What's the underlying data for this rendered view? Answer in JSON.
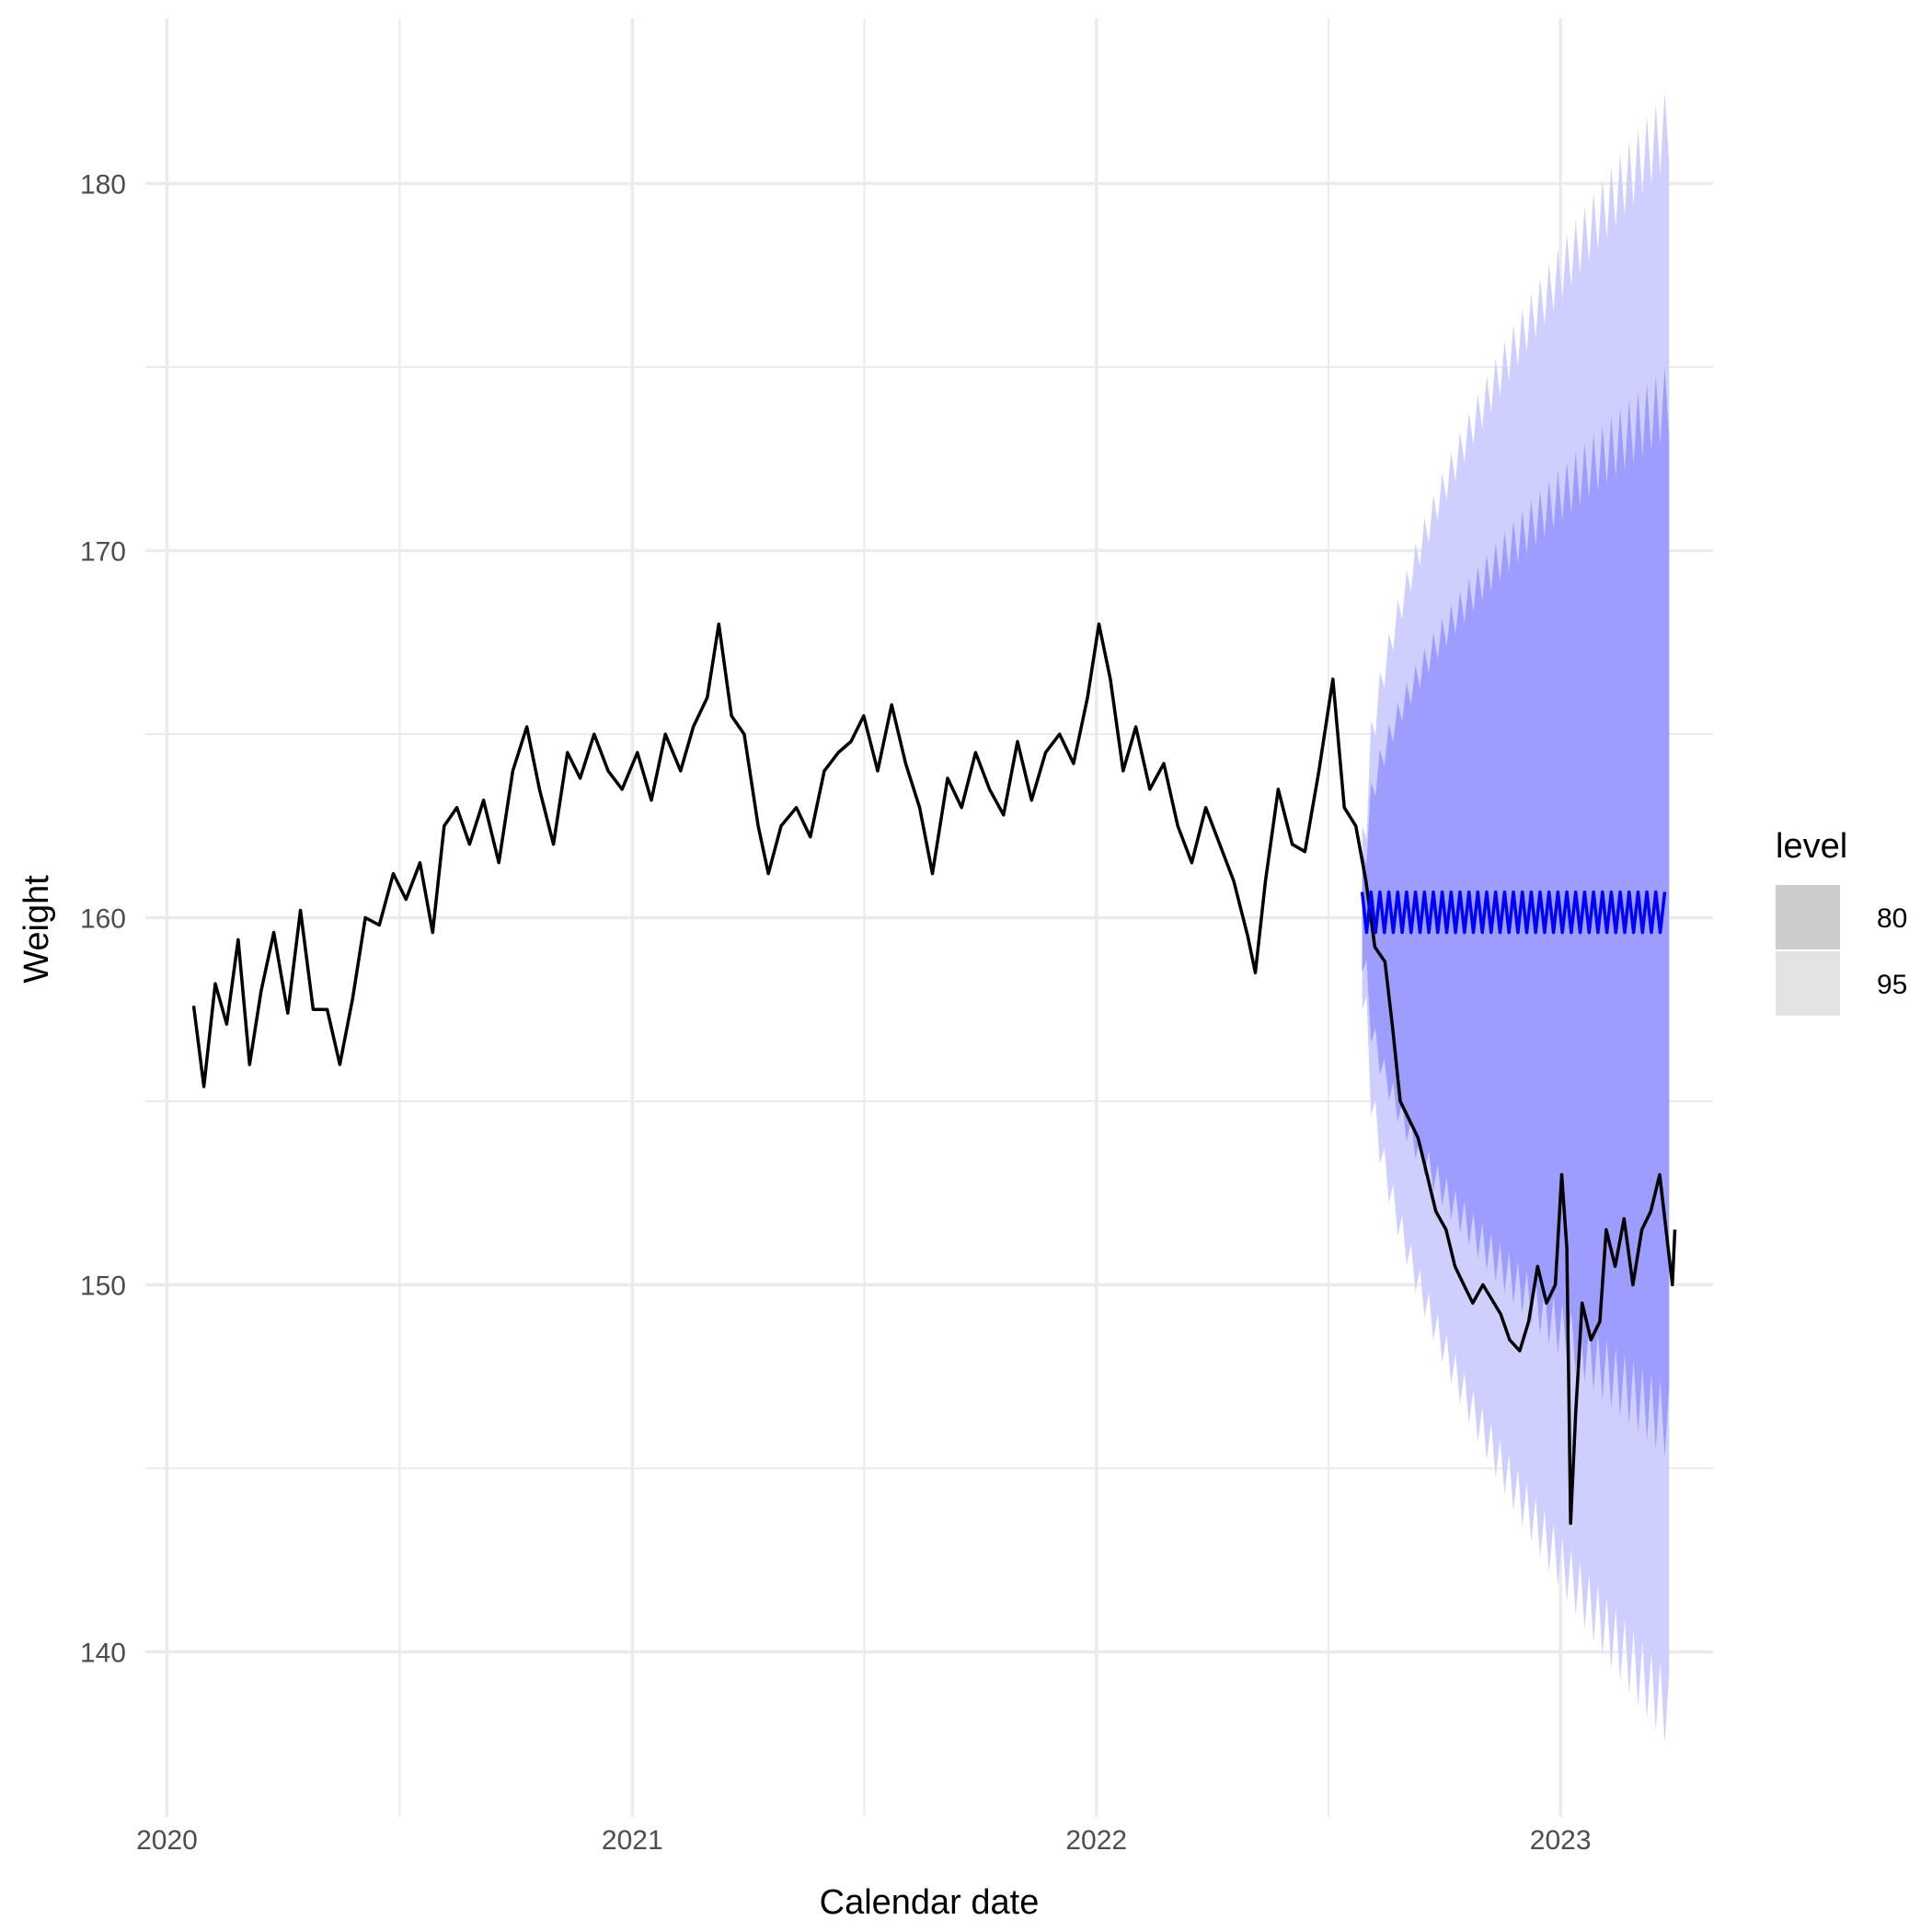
{
  "chart_data": {
    "type": "line",
    "xlabel": "Calendar date",
    "ylabel": "Weight",
    "x_ticks": [
      "2020",
      "2021",
      "2022",
      "2023"
    ],
    "y_ticks": [
      140,
      150,
      160,
      170,
      180
    ],
    "xlim": [
      "2019-12-15",
      "2023-05-01"
    ],
    "ylim": [
      135.5,
      184.5
    ],
    "grid": true,
    "legend": {
      "title": "level",
      "position": "right",
      "entries": [
        "80",
        "95"
      ]
    },
    "colors": {
      "actual": "#000000",
      "forecast": "#0000ff",
      "band_80": "#9d9dff",
      "band_95": "#cfcfff",
      "grid": "#ebebeb",
      "legend_80": "#cccccc",
      "legend_95": "#e3e3e3"
    },
    "series": [
      {
        "type": "line",
        "points": [
          [
            "2020-01-22",
            157.6
          ],
          [
            "2020-01-30",
            155.4
          ],
          [
            "2020-02-08",
            158.2
          ],
          [
            "2020-02-17",
            157.1
          ],
          [
            "2020-02-26",
            159.4
          ],
          [
            "2020-03-06",
            156.0
          ],
          [
            "2020-03-15",
            158.0
          ],
          [
            "2020-03-25",
            159.6
          ],
          [
            "2020-04-05",
            157.4
          ],
          [
            "2020-04-15",
            160.2
          ],
          [
            "2020-04-25",
            157.5
          ],
          [
            "2020-05-06",
            157.5
          ],
          [
            "2020-05-16",
            156.0
          ],
          [
            "2020-05-26",
            157.8
          ],
          [
            "2020-06-05",
            160.0
          ],
          [
            "2020-06-16",
            159.8
          ],
          [
            "2020-06-27",
            161.2
          ],
          [
            "2020-07-07",
            160.5
          ],
          [
            "2020-07-18",
            161.5
          ],
          [
            "2020-07-28",
            159.6
          ],
          [
            "2020-08-06",
            162.5
          ],
          [
            "2020-08-16",
            163.0
          ],
          [
            "2020-08-26",
            162.0
          ],
          [
            "2020-09-06",
            163.2
          ],
          [
            "2020-09-18",
            161.5
          ],
          [
            "2020-09-29",
            164.0
          ],
          [
            "2020-10-10",
            165.2
          ],
          [
            "2020-10-20",
            163.5
          ],
          [
            "2020-10-31",
            162.0
          ],
          [
            "2020-11-11",
            164.5
          ],
          [
            "2020-11-21",
            163.8
          ],
          [
            "2020-12-02",
            165.0
          ],
          [
            "2020-12-13",
            164.0
          ],
          [
            "2020-12-24",
            163.5
          ],
          [
            "2021-01-05",
            164.5
          ],
          [
            "2021-01-16",
            163.2
          ],
          [
            "2021-01-27",
            165.0
          ],
          [
            "2021-02-08",
            164.0
          ],
          [
            "2021-02-18",
            165.2
          ],
          [
            "2021-03-01",
            166.0
          ],
          [
            "2021-03-10",
            168.0
          ],
          [
            "2021-03-20",
            165.5
          ],
          [
            "2021-03-30",
            165.0
          ],
          [
            "2021-04-10",
            162.5
          ],
          [
            "2021-04-18",
            161.2
          ],
          [
            "2021-04-28",
            162.5
          ],
          [
            "2021-05-10",
            163.0
          ],
          [
            "2021-05-21",
            162.2
          ],
          [
            "2021-06-01",
            164.0
          ],
          [
            "2021-06-12",
            164.5
          ],
          [
            "2021-06-22",
            164.8
          ],
          [
            "2021-07-02",
            165.5
          ],
          [
            "2021-07-13",
            164.0
          ],
          [
            "2021-07-24",
            165.8
          ],
          [
            "2021-08-04",
            164.2
          ],
          [
            "2021-08-15",
            163.0
          ],
          [
            "2021-08-25",
            161.2
          ],
          [
            "2021-09-06",
            163.8
          ],
          [
            "2021-09-17",
            163.0
          ],
          [
            "2021-09-28",
            164.5
          ],
          [
            "2021-10-09",
            163.5
          ],
          [
            "2021-10-20",
            162.8
          ],
          [
            "2021-10-31",
            164.8
          ],
          [
            "2021-11-11",
            163.2
          ],
          [
            "2021-11-22",
            164.5
          ],
          [
            "2021-12-03",
            165.0
          ],
          [
            "2021-12-14",
            164.2
          ],
          [
            "2021-12-25",
            166.0
          ],
          [
            "2022-01-03",
            168.0
          ],
          [
            "2022-01-12",
            166.5
          ],
          [
            "2022-01-22",
            164.0
          ],
          [
            "2022-02-01",
            165.2
          ],
          [
            "2022-02-12",
            163.5
          ],
          [
            "2022-02-23",
            164.2
          ],
          [
            "2022-03-06",
            162.5
          ],
          [
            "2022-03-17",
            161.5
          ],
          [
            "2022-03-28",
            163.0
          ],
          [
            "2022-04-08",
            162.0
          ],
          [
            "2022-04-19",
            161.0
          ],
          [
            "2022-04-30",
            159.5
          ],
          [
            "2022-05-06",
            158.5
          ],
          [
            "2022-05-14",
            161.0
          ],
          [
            "2022-05-24",
            163.5
          ],
          [
            "2022-06-04",
            162.0
          ],
          [
            "2022-06-14",
            161.8
          ],
          [
            "2022-06-25",
            164.0
          ],
          [
            "2022-07-06",
            166.5
          ],
          [
            "2022-07-15",
            163.0
          ],
          [
            "2022-07-24",
            162.5
          ],
          [
            "2022-08-01",
            161.0
          ],
          [
            "2022-08-08",
            159.2
          ],
          [
            "2022-08-16",
            158.8
          ],
          [
            "2022-08-22",
            157.0
          ],
          [
            "2022-08-28",
            155.0
          ],
          [
            "2022-09-04",
            154.5
          ],
          [
            "2022-09-11",
            154.0
          ],
          [
            "2022-09-18",
            153.0
          ],
          [
            "2022-09-25",
            152.0
          ],
          [
            "2022-10-03",
            151.5
          ],
          [
            "2022-10-10",
            150.5
          ],
          [
            "2022-10-17",
            150.0
          ],
          [
            "2022-10-24",
            149.5
          ],
          [
            "2022-11-01",
            150.0
          ],
          [
            "2022-11-08",
            149.6
          ],
          [
            "2022-11-15",
            149.2
          ],
          [
            "2022-11-22",
            148.5
          ],
          [
            "2022-11-30",
            148.2
          ],
          [
            "2022-12-07",
            149.0
          ],
          [
            "2022-12-14",
            150.5
          ],
          [
            "2022-12-21",
            149.5
          ],
          [
            "2022-12-28",
            150.0
          ],
          [
            "2023-01-02",
            153.0
          ],
          [
            "2023-01-06",
            151.0
          ],
          [
            "2023-01-09",
            143.5
          ],
          [
            "2023-01-13",
            146.5
          ],
          [
            "2023-01-18",
            149.5
          ],
          [
            "2023-01-25",
            148.5
          ],
          [
            "2023-02-01",
            149.0
          ],
          [
            "2023-02-06",
            151.5
          ],
          [
            "2023-02-13",
            150.5
          ],
          [
            "2023-02-20",
            151.8
          ],
          [
            "2023-02-27",
            150.0
          ],
          [
            "2023-03-06",
            151.5
          ],
          [
            "2023-03-13",
            152.0
          ],
          [
            "2023-03-20",
            153.0
          ],
          [
            "2023-03-25",
            151.5
          ],
          [
            "2023-03-30",
            150.0
          ],
          [
            "2023-04-01",
            151.5
          ]
        ]
      },
      {
        "type": "line",
        "start": "2022-07-29",
        "end": "2023-03-25",
        "value_low": 159.6,
        "value_high": 160.7,
        "oscillation_period_days": 7
      }
    ],
    "bands": [
      {
        "level": "95",
        "start": "2022-07-29",
        "end": "2023-03-25",
        "upper_start": 162.5,
        "upper_end": 182.5,
        "lower_start": 157.5,
        "lower_end": 137.5
      },
      {
        "level": "80",
        "start": "2022-07-29",
        "end": "2023-03-25",
        "upper_start": 161.8,
        "upper_end": 175.0,
        "lower_start": 158.5,
        "lower_end": 145.3
      }
    ]
  }
}
